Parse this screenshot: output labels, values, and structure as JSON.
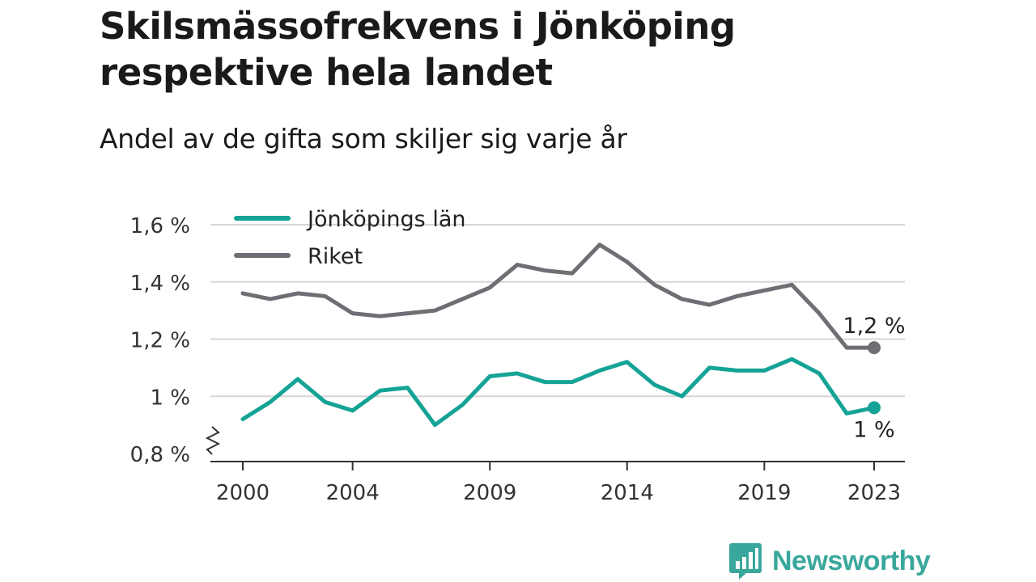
{
  "title": "Skilsmässofrekvens i Jönköping respektive hela landet",
  "subtitle": "Andel av de gifta som skiljer sig varje år",
  "brand": {
    "name": "Newsworthy",
    "icon": "newsworthy-logo-icon"
  },
  "colors": {
    "jonkoping": "#15a396",
    "riket": "#6e6e74",
    "grid": "#d6d6d6",
    "axis": "#333333"
  },
  "chart_data": {
    "type": "line",
    "x": [
      2000,
      2001,
      2002,
      2003,
      2004,
      2005,
      2006,
      2007,
      2008,
      2009,
      2010,
      2011,
      2012,
      2013,
      2014,
      2015,
      2016,
      2017,
      2018,
      2019,
      2020,
      2021,
      2022,
      2023
    ],
    "x_ticks": [
      2000,
      2004,
      2009,
      2014,
      2019,
      2023
    ],
    "y_ticks": [
      0.8,
      1.0,
      1.2,
      1.4,
      1.6
    ],
    "y_tick_labels": [
      "0,8 %",
      "1 %",
      "1,2 %",
      "1,4 %",
      "1,6 %"
    ],
    "ylim": [
      0.8,
      1.6
    ],
    "y_axis_break": true,
    "grid": true,
    "legend_position": "top-left",
    "series": [
      {
        "name": "Jönköpings län",
        "color": "#15a396",
        "values": [
          0.92,
          0.98,
          1.06,
          0.98,
          0.95,
          1.02,
          1.03,
          0.9,
          0.97,
          1.07,
          1.08,
          1.05,
          1.05,
          1.09,
          1.12,
          1.04,
          1.0,
          1.1,
          1.09,
          1.09,
          1.13,
          1.08,
          0.94,
          0.96
        ],
        "end_label": "1 %"
      },
      {
        "name": "Riket",
        "color": "#6e6e74",
        "values": [
          1.36,
          1.34,
          1.36,
          1.35,
          1.29,
          1.28,
          1.29,
          1.3,
          1.34,
          1.38,
          1.46,
          1.44,
          1.43,
          1.53,
          1.47,
          1.39,
          1.34,
          1.32,
          1.35,
          1.37,
          1.39,
          1.29,
          1.17,
          1.17
        ],
        "end_label": "1,2 %"
      }
    ]
  }
}
